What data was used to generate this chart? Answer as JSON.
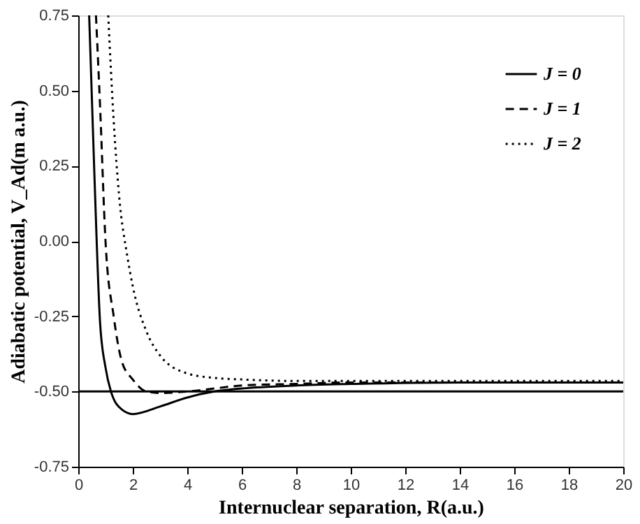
{
  "chart_data": {
    "type": "line",
    "xlabel": "Internuclear separation, R(a.u.)",
    "ylabel": "Adiabatic potential, V_Ad(m a.u.)",
    "xlim": [
      0,
      20
    ],
    "xticks": [
      0,
      2,
      4,
      6,
      8,
      10,
      12,
      14,
      16,
      18,
      20
    ],
    "ylim": [
      -0.75,
      0.75
    ],
    "yticks": [
      {
        "value": -0.75,
        "label": "-0.75"
      },
      {
        "value": -0.5,
        "label": "-0.50"
      },
      {
        "value": -0.25,
        "label": "-0.25"
      },
      {
        "value": 0,
        "label": "0.00"
      },
      {
        "value": 0.25,
        "label": "0.25"
      },
      {
        "value": 0.5,
        "label": "0.50"
      },
      {
        "value": 0.75,
        "label": "0.75"
      }
    ],
    "legend": "top right",
    "grid": false,
    "series": [
      {
        "name": "J = 0",
        "color": "#000000",
        "line_style": "solid",
        "x": [
          0.4,
          0.6,
          0.8,
          1.0,
          1.2,
          1.6,
          2,
          3,
          4,
          5,
          6,
          8,
          10,
          14,
          20
        ],
        "values": [
          0.75,
          0.2,
          -0.27,
          -0.42,
          -0.5,
          -0.56,
          -0.575,
          -0.55,
          -0.52,
          -0.5,
          -0.49,
          -0.48,
          -0.475,
          -0.47,
          -0.47
        ]
      },
      {
        "name": "J = 1",
        "color": "#000000",
        "line_style": "dashed",
        "x": [
          0.65,
          0.8,
          1.0,
          1.3,
          1.6,
          2.0,
          2.5,
          3,
          4,
          5,
          6,
          8,
          10,
          14,
          20
        ],
        "values": [
          0.75,
          0.45,
          0.0,
          -0.25,
          -0.4,
          -0.46,
          -0.5,
          -0.505,
          -0.5,
          -0.49,
          -0.48,
          -0.475,
          -0.47,
          -0.47,
          -0.47
        ]
      },
      {
        "name": "J = 2",
        "color": "#000000",
        "line_style": "dotted",
        "x": [
          1.1,
          1.3,
          1.5,
          1.8,
          2,
          2.5,
          3,
          4,
          5,
          6,
          8,
          10,
          14,
          20
        ],
        "values": [
          0.75,
          0.4,
          0.15,
          -0.05,
          -0.15,
          -0.3,
          -0.38,
          -0.44,
          -0.455,
          -0.46,
          -0.465,
          -0.465,
          -0.465,
          -0.465
        ]
      }
    ],
    "ref_lines": [
      {
        "axis": "y",
        "value": -0.5,
        "color": "#000000",
        "line_style": "solid"
      }
    ]
  }
}
